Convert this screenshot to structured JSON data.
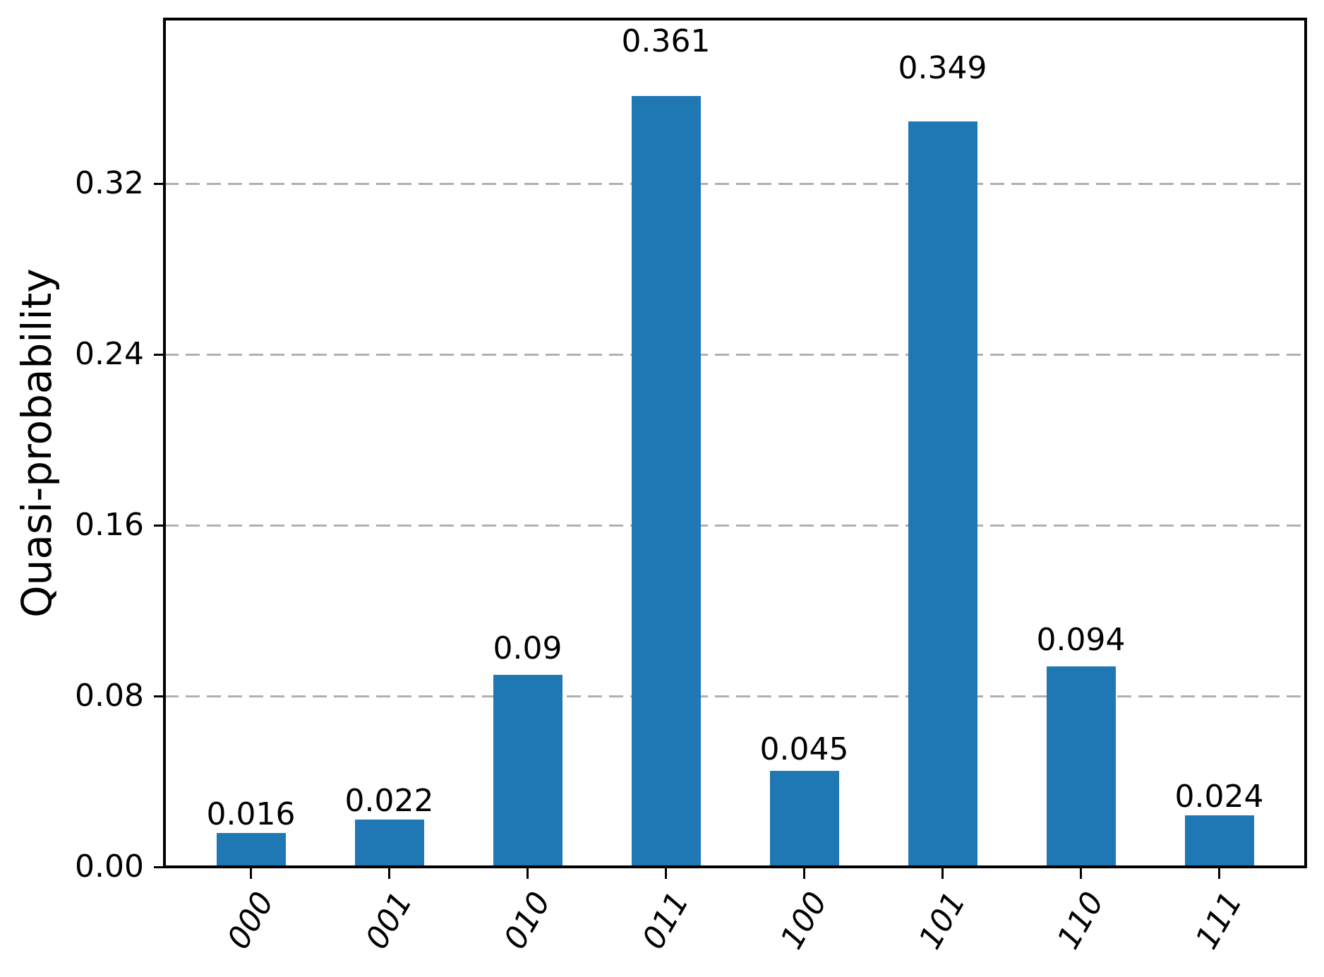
{
  "chart_data": {
    "type": "bar",
    "title": "",
    "xlabel": "",
    "ylabel": "Quasi-probability",
    "categories": [
      "000",
      "001",
      "010",
      "011",
      "100",
      "101",
      "110",
      "111"
    ],
    "values": [
      0.016,
      0.022,
      0.09,
      0.361,
      0.045,
      0.349,
      0.094,
      0.024
    ],
    "bar_labels": [
      "0.016",
      "0.022",
      "0.09",
      "0.361",
      "0.045",
      "0.349",
      "0.094",
      "0.024"
    ],
    "yticks": [
      0.0,
      0.08,
      0.16,
      0.24,
      0.32
    ],
    "ytick_labels": [
      "0.00",
      "0.08",
      "0.16",
      "0.24",
      "0.32"
    ],
    "ylim": [
      0,
      0.3971
    ],
    "grid": "horizontal dashed at yticks, behind bars",
    "legend": "none",
    "bar_color": "#1f77b4",
    "grid_color": "#b0b0b0",
    "axis_color": "#000000",
    "background_color": "#ffffff",
    "value_label_offset_factor": 1.05
  }
}
